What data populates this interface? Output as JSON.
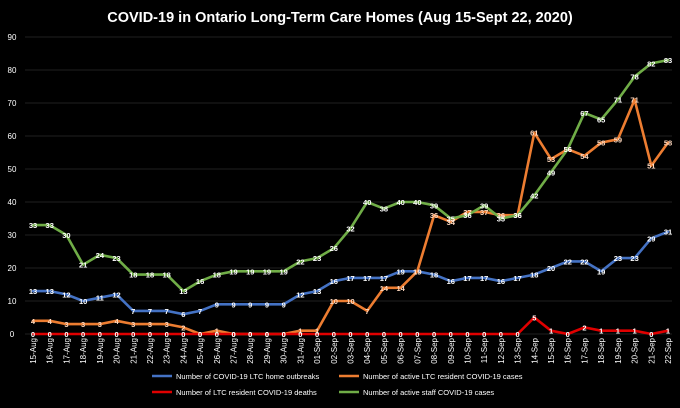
{
  "chart_data": {
    "type": "line",
    "title": "COVID-19 in Ontario Long-Term Care Homes (Aug 15-Sept 22, 2020)",
    "xlabel": "",
    "ylabel": "",
    "ylim": [
      0,
      90
    ],
    "yticks": [
      "0",
      "10",
      "20",
      "30",
      "40",
      "50",
      "60",
      "70",
      "80",
      "90"
    ],
    "grid": true,
    "legend_position": "bottom",
    "categories": [
      "15-Aug",
      "16-Aug",
      "17-Aug",
      "18-Aug",
      "19-Aug",
      "20-Aug",
      "21-Aug",
      "22-Aug",
      "23-Aug",
      "24-Aug",
      "25-Aug",
      "26-Aug",
      "27-Aug",
      "28-Aug",
      "29-Aug",
      "30-Aug",
      "31-Aug",
      "01-Sep",
      "02-Sep",
      "03-Sep",
      "04-Sep",
      "05-Sep",
      "06-Sep",
      "07-Sep",
      "08-Sep",
      "09-Sep",
      "10-Sep",
      "11-Sep",
      "12-Sep",
      "13-Sep",
      "14-Sep",
      "15-Sep",
      "16-Sep",
      "17-Sep",
      "18-Sep",
      "19-Sep",
      "20-Sep",
      "21-Sep",
      "22-Sep"
    ],
    "series": [
      {
        "name": "Number of COVID-19 LTC home outbreaks",
        "color": "#4472c4",
        "values": [
          13,
          13,
          12,
          10,
          11,
          12,
          7,
          7,
          7,
          6,
          7,
          9,
          9,
          9,
          9,
          9,
          12,
          13,
          16,
          17,
          17,
          17,
          19,
          19,
          18,
          16,
          17,
          17,
          16,
          17,
          18,
          20,
          22,
          22,
          19,
          23,
          23,
          29,
          31
        ]
      },
      {
        "name": "Number of active LTC resident COVID-19 cases",
        "color": "#ed7d31",
        "values": [
          4,
          4,
          3,
          3,
          3,
          4,
          3,
          3,
          3,
          2,
          0,
          1,
          0,
          0,
          0,
          0,
          1,
          1,
          10,
          10,
          7,
          14,
          14,
          19,
          36,
          34,
          37,
          37,
          36,
          36,
          61,
          53,
          56,
          54,
          58,
          59,
          71,
          51,
          58
        ]
      },
      {
        "name": "Number of LTC resident COVID-19 deaths",
        "color": "#e00000",
        "values": [
          0,
          0,
          0,
          0,
          0,
          0,
          0,
          0,
          0,
          0,
          0,
          0,
          0,
          0,
          0,
          0,
          0,
          0,
          0,
          0,
          0,
          0,
          0,
          0,
          0,
          0,
          0,
          0,
          0,
          0,
          5,
          1,
          0,
          2,
          1,
          1,
          1,
          0,
          1
        ]
      },
      {
        "name": "Number of active staff COVID-19 cases",
        "color": "#70ad47",
        "values": [
          33,
          33,
          30,
          21,
          24,
          23,
          18,
          18,
          18,
          13,
          16,
          18,
          19,
          19,
          19,
          19,
          22,
          23,
          26,
          32,
          40,
          38,
          40,
          40,
          39,
          35,
          36,
          39,
          35,
          36,
          42,
          49,
          56,
          67,
          65,
          71,
          78,
          82,
          83
        ]
      }
    ]
  }
}
